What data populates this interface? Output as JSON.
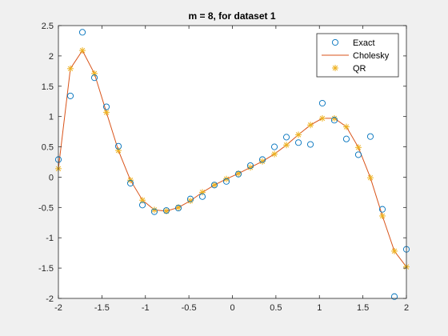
{
  "chart_data": {
    "type": "line",
    "title": "m = 8, for dataset 1",
    "xlabel": "",
    "ylabel": "",
    "xlim": [
      -2,
      2
    ],
    "ylim": [
      -2,
      2.5
    ],
    "xticks": [
      "-2",
      "-1.5",
      "-1",
      "-0.5",
      "0",
      "0.5",
      "1",
      "1.5",
      "2"
    ],
    "yticks": [
      "-2",
      "-1.5",
      "-1",
      "-0.5",
      "0",
      "0.5",
      "1",
      "1.5",
      "2",
      "2.5"
    ],
    "grid": false,
    "legend_position": "top-right",
    "series": [
      {
        "name": "Exact",
        "marker": "circle",
        "color": "#0072BD",
        "x": [
          -2.0,
          -1.862,
          -1.724,
          -1.586,
          -1.448,
          -1.31,
          -1.172,
          -1.034,
          -0.897,
          -0.759,
          -0.621,
          -0.483,
          -0.345,
          -0.207,
          -0.069,
          0.069,
          0.207,
          0.345,
          0.483,
          0.621,
          0.759,
          0.897,
          1.034,
          1.172,
          1.31,
          1.448,
          1.586,
          1.724,
          1.862,
          2.0
        ],
        "y": [
          0.29,
          1.34,
          2.39,
          1.64,
          1.16,
          0.51,
          -0.1,
          -0.46,
          -0.57,
          -0.55,
          -0.51,
          -0.36,
          -0.32,
          -0.13,
          -0.07,
          0.05,
          0.19,
          0.29,
          0.5,
          0.66,
          0.57,
          0.54,
          1.22,
          0.94,
          0.63,
          0.37,
          0.67,
          -0.53,
          -1.97,
          -1.19
        ]
      },
      {
        "name": "Cholesky",
        "marker": "line",
        "color": "#D95319",
        "x": [
          -2.0,
          -1.862,
          -1.724,
          -1.586,
          -1.448,
          -1.31,
          -1.172,
          -1.034,
          -0.897,
          -0.759,
          -0.621,
          -0.483,
          -0.345,
          -0.207,
          -0.069,
          0.069,
          0.207,
          0.345,
          0.483,
          0.621,
          0.759,
          0.897,
          1.034,
          1.172,
          1.31,
          1.448,
          1.586,
          1.724,
          1.862,
          2.0
        ],
        "y": [
          0.14,
          1.79,
          2.09,
          1.71,
          1.07,
          0.44,
          -0.05,
          -0.38,
          -0.54,
          -0.56,
          -0.5,
          -0.39,
          -0.25,
          -0.13,
          -0.03,
          0.06,
          0.16,
          0.26,
          0.38,
          0.53,
          0.7,
          0.86,
          0.97,
          0.97,
          0.83,
          0.49,
          -0.01,
          -0.64,
          -1.22,
          -1.48
        ]
      },
      {
        "name": "QR",
        "marker": "asterisk",
        "color": "#EDB120",
        "x": [
          -2.0,
          -1.862,
          -1.724,
          -1.586,
          -1.448,
          -1.31,
          -1.172,
          -1.034,
          -0.897,
          -0.759,
          -0.621,
          -0.483,
          -0.345,
          -0.207,
          -0.069,
          0.069,
          0.207,
          0.345,
          0.483,
          0.621,
          0.759,
          0.897,
          1.034,
          1.172,
          1.31,
          1.448,
          1.586,
          1.724,
          1.862,
          2.0
        ],
        "y": [
          0.14,
          1.79,
          2.09,
          1.71,
          1.07,
          0.44,
          -0.05,
          -0.38,
          -0.54,
          -0.56,
          -0.5,
          -0.39,
          -0.25,
          -0.13,
          -0.03,
          0.06,
          0.16,
          0.26,
          0.38,
          0.53,
          0.7,
          0.86,
          0.97,
          0.97,
          0.83,
          0.49,
          -0.01,
          -0.64,
          -1.22,
          -1.48
        ]
      }
    ]
  }
}
